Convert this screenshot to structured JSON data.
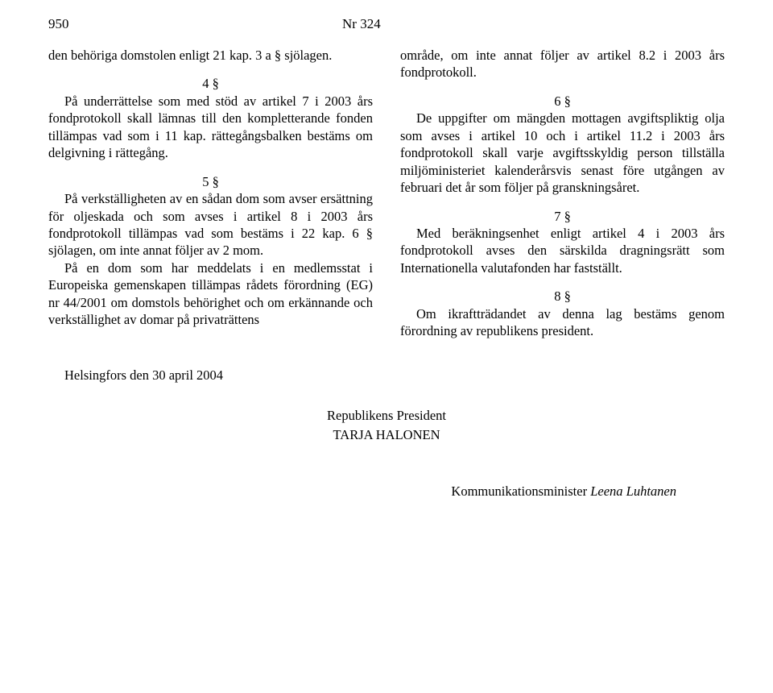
{
  "header": {
    "page_number": "950",
    "nr": "Nr 324"
  },
  "left_col": {
    "p1": "den behöriga domstolen enligt 21 kap. 3 a § sjölagen.",
    "s4": "4 §",
    "p2": "På underrättelse som med stöd av artikel 7 i 2003 års fondprotokoll skall lämnas till den kompletterande fonden tillämpas vad som i 11 kap. rättegångsbalken bestäms om delgivning i rättegång.",
    "s5": "5 §",
    "p3": "På verkställigheten av en sådan dom som avser ersättning för oljeskada och som avses i artikel 8 i 2003 års fondprotokoll tillämpas vad som bestäms i 22 kap. 6 § sjölagen, om inte annat följer av 2 mom.",
    "p4": "På en dom som har meddelats i en medlemsstat i Europeiska gemenskapen tillämpas rådets förordning (EG) nr 44/2001 om domstols behörighet och om erkännande och verkställighet av domar på privaträttens"
  },
  "right_col": {
    "p1": "område, om inte annat följer av artikel 8.2 i 2003 års fondprotokoll.",
    "s6": "6 §",
    "p2": "De uppgifter om mängden mottagen avgiftspliktig olja som avses i artikel 10 och i artikel 11.2 i 2003 års fondprotokoll skall varje avgiftsskyldig person tillställa miljöministeriet kalenderårsvis senast före utgången av februari det år som följer på granskningsåret.",
    "s7": "7 §",
    "p3": "Med beräkningsenhet enligt artikel 4 i 2003 års fondprotokoll avses den särskilda dragningsrätt som Internationella valutafonden har fastställt.",
    "s8": "8 §",
    "p4": "Om ikraftträdandet av denna lag bestäms genom förordning av republikens president."
  },
  "date": "Helsingfors den 30 april 2004",
  "signature": {
    "title": "Republikens President",
    "name": "TARJA HALONEN"
  },
  "minister": {
    "label": "Kommunikationsminister ",
    "name": "Leena Luhtanen"
  }
}
